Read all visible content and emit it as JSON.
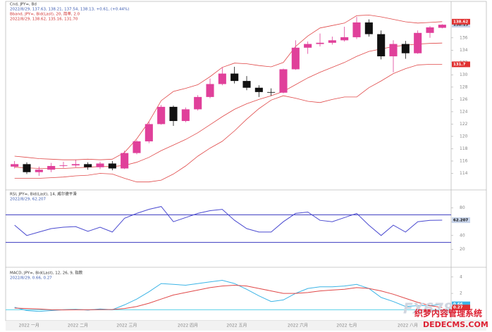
{
  "chart_data": [
    {
      "type": "candlestick",
      "title": "Cnd, JPY=, Bd",
      "subtitle": "2022/8/29, 137.63, 138.21, 137.54, 138.13, +0.61, (+0.44%)",
      "bands_title": "Bband, JPY=, Bid(Last), 20, 简单, 2.0",
      "bands_subtitle": "2022/8/29, 138.62, 135.16, 131.70",
      "categories": [
        "2022 一月",
        null,
        null,
        null,
        "2022 二月",
        null,
        null,
        null,
        "2022 三月",
        null,
        null,
        null,
        null,
        "2022 四月",
        null,
        null,
        null,
        "2022 五月",
        null,
        null,
        null,
        null,
        "2022 六月",
        null,
        null,
        null,
        "2022 七月",
        null,
        null,
        null,
        null,
        "2022 八月",
        null,
        null,
        null,
        null
      ],
      "open": [
        115.1,
        115.5,
        114.2,
        114.6,
        115.2,
        115.3,
        115.5,
        115.0,
        115.6,
        114.8,
        117.3,
        119.2,
        122.0,
        124.8,
        122.5,
        124.4,
        126.4,
        128.5,
        130.2,
        129.0,
        127.9,
        127.2,
        127.1,
        130.9,
        134.4,
        135.0,
        135.2,
        135.6,
        136.1,
        138.5,
        136.6,
        133.0,
        135.0,
        133.5,
        136.8,
        137.63
      ],
      "high": [
        116.0,
        115.8,
        115.1,
        115.7,
        115.9,
        116.2,
        115.8,
        115.9,
        116.0,
        117.7,
        119.4,
        122.4,
        125.1,
        125.0,
        124.7,
        126.7,
        129.4,
        131.2,
        131.3,
        129.8,
        128.3,
        127.8,
        131.0,
        135.6,
        135.4,
        136.7,
        136.2,
        137.8,
        139.4,
        139.0,
        137.2,
        135.6,
        135.5,
        137.2,
        137.9,
        138.21
      ],
      "low": [
        114.8,
        113.9,
        113.6,
        114.2,
        114.9,
        115.0,
        114.6,
        114.7,
        114.5,
        114.7,
        117.1,
        118.9,
        121.9,
        121.7,
        122.3,
        124.2,
        126.2,
        128.3,
        128.6,
        127.5,
        126.4,
        126.6,
        127.0,
        130.8,
        133.4,
        134.6,
        134.9,
        135.4,
        135.8,
        136.2,
        132.5,
        130.4,
        132.6,
        133.4,
        136.0,
        137.54
      ],
      "close": [
        115.5,
        114.2,
        114.6,
        115.2,
        115.3,
        115.5,
        115.0,
        115.6,
        114.8,
        117.3,
        119.2,
        122.0,
        124.8,
        122.5,
        124.4,
        126.4,
        128.5,
        130.2,
        129.0,
        127.9,
        127.2,
        127.1,
        130.9,
        134.4,
        135.0,
        135.2,
        135.6,
        136.1,
        138.5,
        136.6,
        133.0,
        135.0,
        133.5,
        136.8,
        137.7,
        138.13
      ],
      "up_color": "#e0409a",
      "down_color": "#111111",
      "series": [
        {
          "color": "#e04848",
          "values": [
            116.8,
            116.6,
            116.4,
            116.3,
            116.2,
            116.2,
            116.3,
            116.2,
            116.3,
            117.4,
            119.6,
            122.4,
            125.8,
            127.3,
            127.8,
            128.4,
            129.7,
            131.2,
            131.9,
            131.8,
            131.5,
            131.3,
            132.0,
            134.6,
            136.3,
            137.6,
            138.0,
            138.4,
            139.6,
            139.7,
            139.4,
            139.0,
            138.6,
            138.4,
            138.5,
            138.62
          ]
        },
        {
          "color": "#e04848",
          "values": [
            115.0,
            114.9,
            114.8,
            114.8,
            114.8,
            114.9,
            115.0,
            115.1,
            115.1,
            115.3,
            115.8,
            116.6,
            117.7,
            118.6,
            119.5,
            120.6,
            121.9,
            123.2,
            124.4,
            125.3,
            126.0,
            126.6,
            127.3,
            128.4,
            129.5,
            130.4,
            131.2,
            132.0,
            133.0,
            133.8,
            134.2,
            134.6,
            134.8,
            135.0,
            135.1,
            135.16
          ]
        },
        {
          "color": "#e04848",
          "values": [
            113.2,
            113.2,
            113.2,
            113.3,
            113.4,
            113.6,
            113.7,
            114.0,
            113.9,
            113.2,
            112.6,
            112.6,
            112.9,
            113.9,
            115.2,
            116.8,
            118.1,
            119.2,
            120.9,
            122.8,
            124.5,
            125.9,
            126.6,
            126.2,
            125.7,
            125.5,
            126.0,
            126.4,
            126.4,
            127.9,
            129.0,
            130.2,
            131.0,
            131.6,
            131.7,
            131.7
          ]
        }
      ],
      "ylim": [
        112,
        141
      ],
      "yticks": [
        114,
        116,
        118,
        120,
        122,
        124,
        126,
        128,
        130,
        132,
        134,
        136
      ]
    },
    {
      "type": "line",
      "title": "RSI, JPY=, Bid(Last), 14, 威尔德平滑",
      "subtitle": "2022/8/29, 62.207",
      "series": [
        {
          "color": "#4a4ad0",
          "values": [
            55,
            40,
            45,
            50,
            52,
            53,
            46,
            52,
            45,
            65,
            72,
            78,
            82,
            60,
            66,
            72,
            76,
            78,
            62,
            50,
            45,
            45,
            60,
            72,
            74,
            62,
            60,
            66,
            72,
            55,
            40,
            55,
            45,
            60,
            62,
            62.207
          ]
        }
      ],
      "levels": [
        30,
        70
      ],
      "level_color": "#3a3ac0",
      "ylim": [
        0,
        100
      ],
      "yticks": [
        20,
        40,
        60,
        80
      ]
    },
    {
      "type": "line",
      "title": "MACD, JPY=, Bid(Last), 12, 26, 9, 指数",
      "subtitle": "2022/8/29, 0.66, 0.27",
      "series": [
        {
          "color": "#3cb4e6",
          "values": [
            0.3,
            -0.1,
            -0.2,
            -0.1,
            0.0,
            0.05,
            -0.05,
            0.1,
            0.0,
            0.6,
            1.3,
            2.2,
            3.2,
            3.1,
            3.0,
            3.2,
            3.4,
            3.6,
            3.2,
            2.5,
            1.7,
            1.0,
            1.2,
            2.0,
            2.6,
            2.8,
            2.8,
            2.9,
            3.1,
            2.6,
            1.5,
            1.0,
            0.4,
            0.5,
            0.5,
            0.66
          ]
        },
        {
          "color": "#e04848",
          "values": [
            0.2,
            0.15,
            0.1,
            0.0,
            -0.02,
            0.0,
            0.0,
            0.02,
            0.03,
            0.15,
            0.4,
            0.8,
            1.3,
            1.8,
            2.1,
            2.4,
            2.7,
            2.9,
            3.0,
            2.9,
            2.6,
            2.3,
            2.0,
            2.0,
            2.1,
            2.3,
            2.4,
            2.5,
            2.7,
            2.6,
            2.3,
            1.9,
            1.4,
            0.9,
            0.5,
            0.27
          ]
        }
      ],
      "levels": [
        0
      ],
      "level_color": "#5ad0e8",
      "ylim": [
        -1,
        4.5
      ],
      "yticks": [
        0,
        2,
        4
      ]
    }
  ],
  "watermark": {
    "brand": "FX678",
    "site": "织梦内容管理系统",
    "domain": "DEDECMS.COM"
  }
}
